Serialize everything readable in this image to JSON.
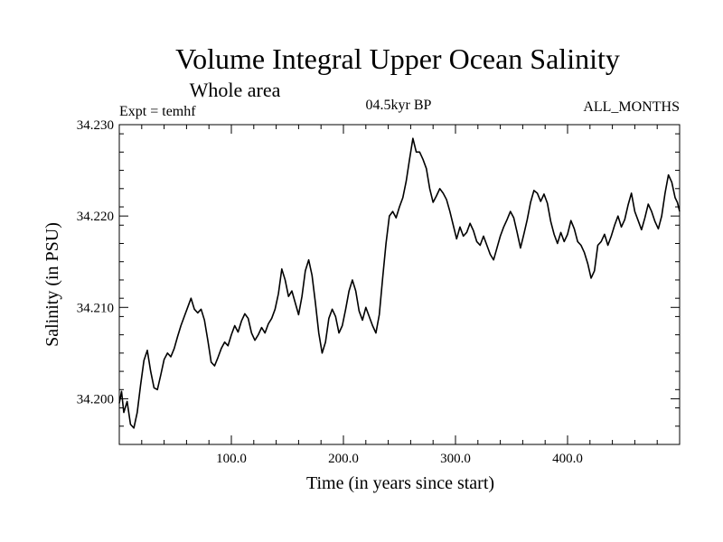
{
  "chart_data": {
    "type": "line",
    "title": "Volume Integral Upper Ocean Salinity",
    "subtitle": "Whole area",
    "annotations": {
      "left": "Expt = temhf",
      "center": "04.5kyr BP",
      "right": "ALL_MONTHS"
    },
    "xlabel": "Time (in years since start)",
    "ylabel": "Salinity (in PSU)",
    "xlim": [
      0,
      500
    ],
    "ylim": [
      34.195,
      34.23
    ],
    "x_ticks": [
      100,
      200,
      300,
      400
    ],
    "x_tick_labels": [
      "100.0",
      "200.0",
      "300.0",
      "400.0"
    ],
    "y_ticks": [
      34.2,
      34.21,
      34.22,
      34.23
    ],
    "y_tick_labels": [
      "34.200",
      "34.210",
      "34.220",
      "34.230"
    ],
    "x_minor_step": 20,
    "y_minor_step": 0.002,
    "grid": false,
    "series": [
      {
        "name": "salinity",
        "points": [
          [
            0,
            34.1995
          ],
          [
            2,
            34.2008
          ],
          [
            4,
            34.1985
          ],
          [
            7,
            34.1997
          ],
          [
            10,
            34.1972
          ],
          [
            13,
            34.1968
          ],
          [
            16,
            34.1985
          ],
          [
            19,
            34.2015
          ],
          [
            22,
            34.2042
          ],
          [
            25,
            34.2053
          ],
          [
            28,
            34.203
          ],
          [
            31,
            34.2012
          ],
          [
            34,
            34.201
          ],
          [
            37,
            34.2026
          ],
          [
            40,
            34.2043
          ],
          [
            43,
            34.205
          ],
          [
            46,
            34.2046
          ],
          [
            49,
            34.2055
          ],
          [
            52,
            34.2068
          ],
          [
            55,
            34.208
          ],
          [
            58,
            34.209
          ],
          [
            61,
            34.21
          ],
          [
            64,
            34.211
          ],
          [
            67,
            34.2098
          ],
          [
            70,
            34.2094
          ],
          [
            73,
            34.2098
          ],
          [
            76,
            34.2086
          ],
          [
            79,
            34.2064
          ],
          [
            82,
            34.204
          ],
          [
            85,
            34.2036
          ],
          [
            88,
            34.2045
          ],
          [
            91,
            34.2055
          ],
          [
            94,
            34.2062
          ],
          [
            97,
            34.2058
          ],
          [
            100,
            34.207
          ],
          [
            103,
            34.208
          ],
          [
            106,
            34.2073
          ],
          [
            109,
            34.2085
          ],
          [
            112,
            34.2093
          ],
          [
            115,
            34.2088
          ],
          [
            118,
            34.2072
          ],
          [
            121,
            34.2064
          ],
          [
            124,
            34.207
          ],
          [
            127,
            34.2078
          ],
          [
            130,
            34.2072
          ],
          [
            133,
            34.2082
          ],
          [
            136,
            34.2088
          ],
          [
            139,
            34.2098
          ],
          [
            142,
            34.2115
          ],
          [
            145,
            34.2142
          ],
          [
            148,
            34.213
          ],
          [
            151,
            34.2112
          ],
          [
            154,
            34.2118
          ],
          [
            157,
            34.2105
          ],
          [
            160,
            34.2092
          ],
          [
            163,
            34.2112
          ],
          [
            166,
            34.214
          ],
          [
            169,
            34.2152
          ],
          [
            172,
            34.2135
          ],
          [
            175,
            34.2105
          ],
          [
            178,
            34.2072
          ],
          [
            181,
            34.205
          ],
          [
            184,
            34.2062
          ],
          [
            187,
            34.2088
          ],
          [
            190,
            34.2098
          ],
          [
            193,
            34.209
          ],
          [
            196,
            34.2072
          ],
          [
            199,
            34.208
          ],
          [
            202,
            34.2098
          ],
          [
            205,
            34.2118
          ],
          [
            208,
            34.213
          ],
          [
            211,
            34.2118
          ],
          [
            214,
            34.2096
          ],
          [
            217,
            34.2086
          ],
          [
            220,
            34.21
          ],
          [
            223,
            34.209
          ],
          [
            226,
            34.208
          ],
          [
            229,
            34.2072
          ],
          [
            232,
            34.2092
          ],
          [
            235,
            34.2132
          ],
          [
            238,
            34.217
          ],
          [
            241,
            34.22
          ],
          [
            244,
            34.2205
          ],
          [
            247,
            34.2198
          ],
          [
            250,
            34.221
          ],
          [
            253,
            34.222
          ],
          [
            256,
            34.2238
          ],
          [
            259,
            34.2262
          ],
          [
            262,
            34.2285
          ],
          [
            265,
            34.227
          ],
          [
            268,
            34.227
          ],
          [
            271,
            34.2262
          ],
          [
            274,
            34.2252
          ],
          [
            277,
            34.223
          ],
          [
            280,
            34.2215
          ],
          [
            283,
            34.2222
          ],
          [
            286,
            34.223
          ],
          [
            289,
            34.2225
          ],
          [
            292,
            34.2218
          ],
          [
            295,
            34.2205
          ],
          [
            298,
            34.219
          ],
          [
            301,
            34.2175
          ],
          [
            304,
            34.2188
          ],
          [
            307,
            34.2178
          ],
          [
            310,
            34.2182
          ],
          [
            313,
            34.2192
          ],
          [
            316,
            34.2184
          ],
          [
            319,
            34.2172
          ],
          [
            322,
            34.2168
          ],
          [
            325,
            34.2178
          ],
          [
            328,
            34.2168
          ],
          [
            331,
            34.2158
          ],
          [
            334,
            34.2152
          ],
          [
            337,
            34.2165
          ],
          [
            340,
            34.2178
          ],
          [
            343,
            34.2188
          ],
          [
            346,
            34.2196
          ],
          [
            349,
            34.2205
          ],
          [
            352,
            34.2198
          ],
          [
            355,
            34.2182
          ],
          [
            358,
            34.2165
          ],
          [
            361,
            34.218
          ],
          [
            364,
            34.2196
          ],
          [
            367,
            34.2215
          ],
          [
            370,
            34.2228
          ],
          [
            373,
            34.2225
          ],
          [
            376,
            34.2216
          ],
          [
            379,
            34.2224
          ],
          [
            382,
            34.2214
          ],
          [
            385,
            34.2194
          ],
          [
            388,
            34.218
          ],
          [
            391,
            34.217
          ],
          [
            394,
            34.2182
          ],
          [
            397,
            34.2172
          ],
          [
            400,
            34.218
          ],
          [
            403,
            34.2195
          ],
          [
            406,
            34.2186
          ],
          [
            409,
            34.2172
          ],
          [
            412,
            34.2168
          ],
          [
            415,
            34.216
          ],
          [
            418,
            34.2148
          ],
          [
            421,
            34.2132
          ],
          [
            424,
            34.214
          ],
          [
            427,
            34.2168
          ],
          [
            430,
            34.2172
          ],
          [
            433,
            34.218
          ],
          [
            436,
            34.2168
          ],
          [
            439,
            34.2178
          ],
          [
            442,
            34.219
          ],
          [
            445,
            34.22
          ],
          [
            448,
            34.2188
          ],
          [
            451,
            34.2196
          ],
          [
            454,
            34.2212
          ],
          [
            457,
            34.2225
          ],
          [
            460,
            34.2205
          ],
          [
            463,
            34.2195
          ],
          [
            466,
            34.2185
          ],
          [
            469,
            34.2198
          ],
          [
            472,
            34.2213
          ],
          [
            475,
            34.2205
          ],
          [
            478,
            34.2194
          ],
          [
            481,
            34.2186
          ],
          [
            484,
            34.22
          ],
          [
            487,
            34.2225
          ],
          [
            490,
            34.2245
          ],
          [
            493,
            34.2237
          ],
          [
            496,
            34.222
          ],
          [
            498,
            34.2215
          ],
          [
            500,
            34.2205
          ]
        ]
      }
    ]
  }
}
